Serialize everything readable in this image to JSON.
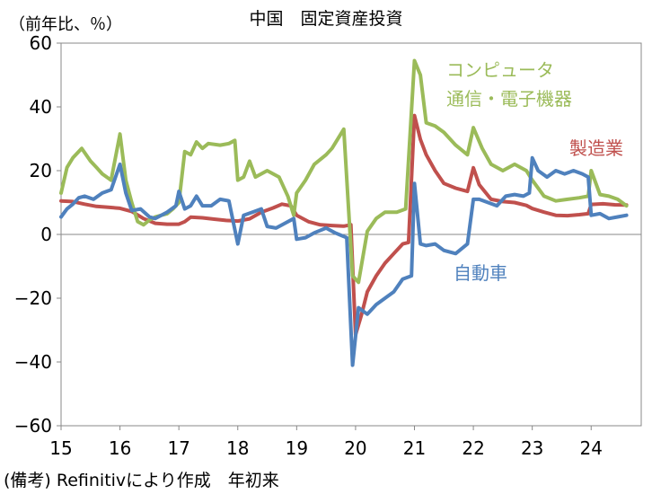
{
  "title": "中国　固定資産投資",
  "unit_label": "（前年比、％）",
  "note": "(備考) Refinitivにより作成　年初来",
  "chart_data": {
    "type": "line",
    "title": "中国　固定資産投資",
    "ylabel": "（前年比、％）",
    "ylim": [
      -60,
      60
    ],
    "yticks": [
      -60,
      -40,
      -20,
      0,
      20,
      40,
      60
    ],
    "xlim": [
      2015.0,
      2024.85
    ],
    "xtick_labels": [
      "15",
      "16",
      "17",
      "18",
      "19",
      "20",
      "21",
      "22",
      "23",
      "24"
    ],
    "grid": false,
    "zero_line": true,
    "series": [
      {
        "name": "製造業",
        "color": "#c0504d",
        "label_lines": [
          "製造業"
        ],
        "points": [
          [
            2015.0,
            10.5
          ],
          [
            2015.2,
            10.3
          ],
          [
            2015.4,
            9.5
          ],
          [
            2015.6,
            8.8
          ],
          [
            2015.8,
            8.5
          ],
          [
            2016.0,
            8.2
          ],
          [
            2016.2,
            7.2
          ],
          [
            2016.4,
            5.0
          ],
          [
            2016.6,
            3.5
          ],
          [
            2016.8,
            3.2
          ],
          [
            2017.0,
            3.2
          ],
          [
            2017.1,
            4.0
          ],
          [
            2017.2,
            5.4
          ],
          [
            2017.4,
            5.2
          ],
          [
            2017.6,
            4.8
          ],
          [
            2017.8,
            4.4
          ],
          [
            2018.0,
            4.2
          ],
          [
            2018.2,
            4.9
          ],
          [
            2018.4,
            7.0
          ],
          [
            2018.6,
            8.3
          ],
          [
            2018.75,
            9.5
          ],
          [
            2018.9,
            9.0
          ],
          [
            2019.0,
            6.0
          ],
          [
            2019.2,
            4.0
          ],
          [
            2019.4,
            3.0
          ],
          [
            2019.6,
            2.8
          ],
          [
            2019.8,
            2.6
          ],
          [
            2019.92,
            3.0
          ],
          [
            2020.0,
            -31.5
          ],
          [
            2020.1,
            -25.2
          ],
          [
            2020.2,
            -18.0
          ],
          [
            2020.35,
            -13.0
          ],
          [
            2020.5,
            -9.0
          ],
          [
            2020.65,
            -6.0
          ],
          [
            2020.8,
            -3.0
          ],
          [
            2020.9,
            -2.5
          ],
          [
            2021.0,
            37.3
          ],
          [
            2021.1,
            29.8
          ],
          [
            2021.2,
            25.0
          ],
          [
            2021.35,
            20.0
          ],
          [
            2021.5,
            16.0
          ],
          [
            2021.7,
            14.5
          ],
          [
            2021.9,
            13.5
          ],
          [
            2022.0,
            20.9
          ],
          [
            2022.1,
            15.6
          ],
          [
            2022.3,
            11.0
          ],
          [
            2022.5,
            10.3
          ],
          [
            2022.7,
            10.0
          ],
          [
            2022.9,
            9.1
          ],
          [
            2023.0,
            8.1
          ],
          [
            2023.2,
            7.0
          ],
          [
            2023.4,
            6.0
          ],
          [
            2023.6,
            5.9
          ],
          [
            2023.8,
            6.2
          ],
          [
            2023.95,
            6.5
          ],
          [
            2024.0,
            9.4
          ],
          [
            2024.2,
            9.6
          ],
          [
            2024.4,
            9.3
          ],
          [
            2024.6,
            9.2
          ]
        ]
      },
      {
        "name": "コンピュータ通信・電子機器",
        "color": "#9bbb59",
        "label_lines": [
          "コンピュータ",
          "通信・電子機器"
        ],
        "points": [
          [
            2015.0,
            13.0
          ],
          [
            2015.1,
            21.0
          ],
          [
            2015.2,
            24.0
          ],
          [
            2015.35,
            27.0
          ],
          [
            2015.5,
            23.0
          ],
          [
            2015.6,
            21.0
          ],
          [
            2015.7,
            19.0
          ],
          [
            2015.85,
            17.0
          ],
          [
            2016.0,
            31.5
          ],
          [
            2016.1,
            17.0
          ],
          [
            2016.2,
            10.0
          ],
          [
            2016.3,
            4.0
          ],
          [
            2016.4,
            3.0
          ],
          [
            2016.5,
            4.5
          ],
          [
            2016.6,
            5.5
          ],
          [
            2016.8,
            6.5
          ],
          [
            2016.9,
            8.0
          ],
          [
            2017.0,
            10.0
          ],
          [
            2017.1,
            26.0
          ],
          [
            2017.2,
            25.0
          ],
          [
            2017.3,
            29.0
          ],
          [
            2017.4,
            27.0
          ],
          [
            2017.5,
            28.5
          ],
          [
            2017.7,
            28.0
          ],
          [
            2017.85,
            28.5
          ],
          [
            2017.95,
            29.5
          ],
          [
            2018.0,
            17.0
          ],
          [
            2018.1,
            18.0
          ],
          [
            2018.2,
            23.0
          ],
          [
            2018.3,
            18.0
          ],
          [
            2018.5,
            20.0
          ],
          [
            2018.7,
            18.0
          ],
          [
            2018.85,
            12.0
          ],
          [
            2018.95,
            6.0
          ],
          [
            2019.0,
            13.0
          ],
          [
            2019.15,
            17.0
          ],
          [
            2019.3,
            22.0
          ],
          [
            2019.5,
            25.0
          ],
          [
            2019.6,
            27.0
          ],
          [
            2019.8,
            33.0
          ],
          [
            2019.95,
            -13.0
          ],
          [
            2020.05,
            -15.0
          ],
          [
            2020.2,
            1.0
          ],
          [
            2020.35,
            5.0
          ],
          [
            2020.5,
            7.0
          ],
          [
            2020.7,
            7.0
          ],
          [
            2020.85,
            8.0
          ],
          [
            2021.0,
            54.5
          ],
          [
            2021.1,
            50.0
          ],
          [
            2021.2,
            35.0
          ],
          [
            2021.35,
            34.0
          ],
          [
            2021.5,
            32.0
          ],
          [
            2021.7,
            28.0
          ],
          [
            2021.9,
            25.0
          ],
          [
            2022.0,
            33.5
          ],
          [
            2022.15,
            27.0
          ],
          [
            2022.3,
            22.0
          ],
          [
            2022.5,
            20.0
          ],
          [
            2022.7,
            22.0
          ],
          [
            2022.9,
            20.0
          ],
          [
            2023.0,
            17.0
          ],
          [
            2023.2,
            12.0
          ],
          [
            2023.4,
            10.5
          ],
          [
            2023.6,
            11.0
          ],
          [
            2023.8,
            11.5
          ],
          [
            2023.95,
            12.0
          ],
          [
            2024.0,
            20.0
          ],
          [
            2024.15,
            12.5
          ],
          [
            2024.3,
            12.0
          ],
          [
            2024.45,
            11.0
          ],
          [
            2024.6,
            9.0
          ]
        ]
      },
      {
        "name": "自動車",
        "color": "#4f81bd",
        "label_lines": [
          "自動車"
        ],
        "points": [
          [
            2015.0,
            5.5
          ],
          [
            2015.1,
            8.0
          ],
          [
            2015.2,
            9.5
          ],
          [
            2015.3,
            11.5
          ],
          [
            2015.4,
            12.0
          ],
          [
            2015.55,
            11.0
          ],
          [
            2015.7,
            13.0
          ],
          [
            2015.85,
            14.0
          ],
          [
            2016.0,
            22.0
          ],
          [
            2016.1,
            13.0
          ],
          [
            2016.2,
            7.5
          ],
          [
            2016.35,
            8.0
          ],
          [
            2016.5,
            5.5
          ],
          [
            2016.6,
            5.0
          ],
          [
            2016.8,
            7.0
          ],
          [
            2016.95,
            9.0
          ],
          [
            2017.0,
            13.5
          ],
          [
            2017.1,
            8.0
          ],
          [
            2017.2,
            9.0
          ],
          [
            2017.3,
            12.0
          ],
          [
            2017.4,
            9.0
          ],
          [
            2017.55,
            9.0
          ],
          [
            2017.7,
            11.0
          ],
          [
            2017.85,
            10.5
          ],
          [
            2018.0,
            -3.0
          ],
          [
            2018.1,
            6.0
          ],
          [
            2018.25,
            7.0
          ],
          [
            2018.4,
            8.0
          ],
          [
            2018.5,
            2.5
          ],
          [
            2018.65,
            2.0
          ],
          [
            2018.8,
            3.5
          ],
          [
            2018.95,
            5.0
          ],
          [
            2019.0,
            -1.5
          ],
          [
            2019.15,
            -1.0
          ],
          [
            2019.3,
            0.5
          ],
          [
            2019.5,
            2.0
          ],
          [
            2019.65,
            0.5
          ],
          [
            2019.85,
            -1.0
          ],
          [
            2019.95,
            -41.0
          ],
          [
            2020.05,
            -23.0
          ],
          [
            2020.2,
            -25.0
          ],
          [
            2020.35,
            -22.0
          ],
          [
            2020.5,
            -20.0
          ],
          [
            2020.65,
            -18.0
          ],
          [
            2020.8,
            -14.0
          ],
          [
            2020.95,
            -13.0
          ],
          [
            2021.0,
            16.0
          ],
          [
            2021.1,
            -3.0
          ],
          [
            2021.2,
            -3.5
          ],
          [
            2021.35,
            -3.0
          ],
          [
            2021.5,
            -5.0
          ],
          [
            2021.7,
            -6.0
          ],
          [
            2021.9,
            -3.0
          ],
          [
            2022.0,
            11.0
          ],
          [
            2022.1,
            11.0
          ],
          [
            2022.25,
            10.0
          ],
          [
            2022.4,
            9.0
          ],
          [
            2022.55,
            12.0
          ],
          [
            2022.7,
            12.5
          ],
          [
            2022.85,
            12.0
          ],
          [
            2022.95,
            13.0
          ],
          [
            2023.0,
            24.0
          ],
          [
            2023.1,
            20.0
          ],
          [
            2023.25,
            18.0
          ],
          [
            2023.4,
            20.0
          ],
          [
            2023.55,
            19.0
          ],
          [
            2023.7,
            20.0
          ],
          [
            2023.85,
            19.0
          ],
          [
            2023.95,
            18.0
          ],
          [
            2024.0,
            6.0
          ],
          [
            2024.15,
            6.5
          ],
          [
            2024.3,
            5.0
          ],
          [
            2024.45,
            5.5
          ],
          [
            2024.6,
            6.0
          ]
        ]
      }
    ]
  }
}
